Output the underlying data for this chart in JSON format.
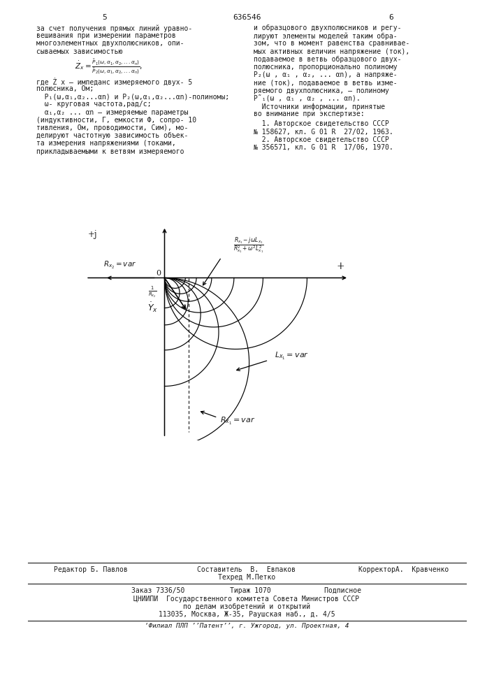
{
  "page_number_left": "5",
  "page_number_center": "636546",
  "page_number_right": "6",
  "bg_color": "#ffffff",
  "text_color": "#1a1a1a",
  "fig_width": 7.07,
  "fig_height": 10.0,
  "col1_text": [
    "за счет получения прямых линий уравно-",
    "вешивания при измерении параметров",
    "многоэлементных двухполюсников, опи-",
    "сываемых зависимостью"
  ],
  "col1_text2": [
    "где Ż x – импеданс измеряемого двух- 5",
    "полюсника, Ом;",
    "  P₁(ω,α₁,α₂...αn) и P₂(ω,α₁,α₂...αn)-полиномы;",
    "  ω- круговая частота,рад/с;",
    "  α₁,α₂ ... αn – измеряемые параметры",
    "(индуктивности, Г, емкости Ф, сопро- 10",
    "тивления, Ом, проводимости, Сим), мо-",
    "делируют частотную зависимость объек-",
    "та измерения напряжениями (токами,",
    "прикладываемыми к ветвям измеряемого"
  ],
  "col2_text": [
    "и образцового двухполюсников и регу-",
    "лируют элементы моделей таким обра-",
    "зом, что в момент равенства сравниваe-",
    "мых активных величин напряжение (ток),",
    "подаваемое в ветвь образцового двух-",
    "полюсника, пропорционально полиному",
    "P₂(ω , α₁ , α₂, ... αn), а напряже-",
    "ние (ток), подаваемое в ветвь изме-",
    "ряемого двухполюсника, – полиному",
    "P̃₁(ω , α₁ , α₂ , ... αn).",
    "  Источники информации, принятые",
    "во внимание при экспертизе:"
  ],
  "col2_text2": [
    "  1. Авторское свидетельство СССР",
    "№ 158627, кл. G 01 R  27/02, 1963.",
    "  2. Авторское свидетельство СССР",
    "№ 356571, кл. G 01 R  17/06, 1970."
  ],
  "footer_col1": "Редактор Б. Павлов",
  "footer_col2a": "Составитель  В.  Евпаков",
  "footer_col2b": "Техред М.Петко",
  "footer_col3": "КорректорА.  Кравченко",
  "footer_bottom": [
    "Заказ 7336/50           Тираж 1070             Подписное",
    "ЦНИИПИ  Государственного комитета Совета Министров СССР",
    "по делам изобретений и открытий",
    "113035, Москва, Ж-35, Раушская наб., д. 4/5"
  ],
  "footer_last": "‘Филиал ПЛП ’’Патент’’, г. Ужгород, ул. Проектная, 4"
}
